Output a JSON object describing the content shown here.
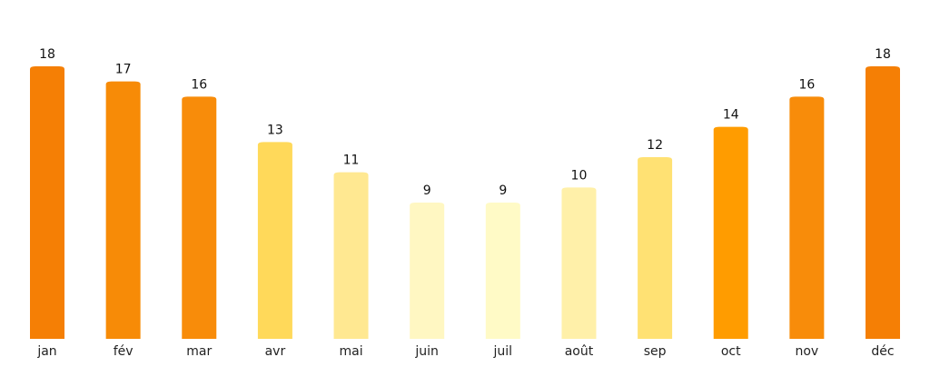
{
  "chart_data": {
    "type": "bar",
    "categories": [
      "jan",
      "fév",
      "mar",
      "avr",
      "mai",
      "juin",
      "juil",
      "août",
      "sep",
      "oct",
      "nov",
      "déc"
    ],
    "values": [
      18,
      17,
      16,
      13,
      11,
      9,
      9,
      10,
      12,
      14,
      16,
      18
    ],
    "bar_colors": [
      "#f57f05",
      "#f78b07",
      "#f88c0a",
      "#ffd95a",
      "#ffe891",
      "#fff7c2",
      "#fffac6",
      "#fff0a9",
      "#ffe173",
      "#ff9c00",
      "#f88c0a",
      "#f57f05"
    ],
    "data_labels": [
      "18",
      "17",
      "16",
      "13",
      "11",
      "9",
      "9",
      "10",
      "12",
      "14",
      "16",
      "18"
    ],
    "title": "",
    "xlabel": "",
    "ylabel": "",
    "ylim": [
      0,
      18
    ],
    "grid": false,
    "legend": "none"
  }
}
